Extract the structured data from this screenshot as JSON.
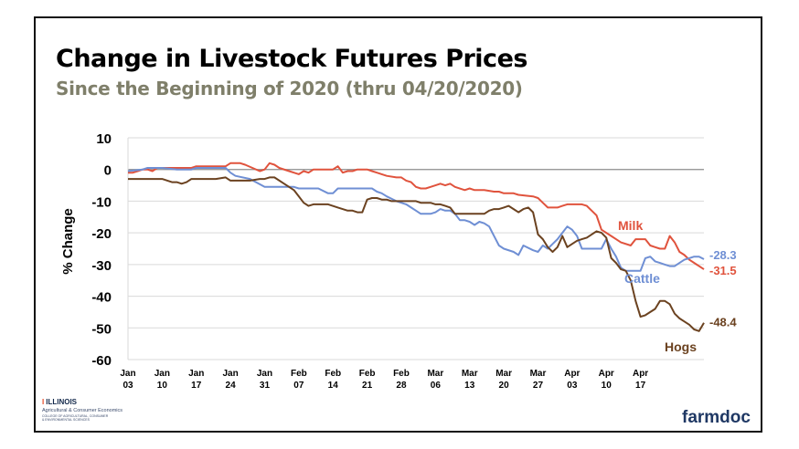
{
  "title": "Change in Livestock Futures Prices",
  "subtitle": "Since the Beginning of 2020 (thru 04/20/2020)",
  "logos": {
    "illinois": "ILLINOIS",
    "aces_line1": "Agricultural & Consumer Economics",
    "aces_line2": "COLLEGE OF AGRICULTURAL, CONSUMER",
    "aces_line3": "& ENVIRONMENTAL SCIENCES",
    "farmdoc": "farmdoc"
  },
  "chart_data": {
    "type": "line",
    "ylabel": "% Change",
    "ylim": [
      -60,
      10
    ],
    "yticks": [
      10,
      0,
      -10,
      -20,
      -30,
      -40,
      -50,
      -60
    ],
    "categories": [
      "Jan 03",
      "Jan 10",
      "Jan 17",
      "Jan 24",
      "Jan 31",
      "Feb 07",
      "Feb 14",
      "Feb 21",
      "Feb 28",
      "Mar 06",
      "Mar 13",
      "Mar 20",
      "Mar 27",
      "Apr 03",
      "Apr 10",
      "Apr 17"
    ],
    "category_months": [
      "Jan",
      "Jan",
      "Jan",
      "Jan",
      "Jan",
      "Feb",
      "Feb",
      "Feb",
      "Feb",
      "Mar",
      "Mar",
      "Mar",
      "Mar",
      "Apr",
      "Apr",
      "Apr"
    ],
    "category_days": [
      "03",
      "10",
      "17",
      "24",
      "31",
      "07",
      "14",
      "21",
      "28",
      "06",
      "13",
      "20",
      "27",
      "03",
      "10",
      "17"
    ],
    "x_unit": "days since Jan 03",
    "grid": true,
    "series": [
      {
        "name": "Milk",
        "color": "#e0533d",
        "end_label": "-31.5",
        "x": [
          0,
          1,
          2,
          3,
          4,
          5,
          6,
          7,
          10,
          13,
          14,
          17,
          20,
          21,
          22,
          23,
          24,
          27,
          28,
          29,
          30,
          31,
          33,
          34,
          35,
          36,
          37,
          38,
          39,
          40,
          42,
          43,
          44,
          45,
          46,
          47,
          49,
          50,
          51,
          52,
          53,
          55,
          56,
          57,
          58,
          59,
          60,
          61,
          62,
          63,
          64,
          65,
          66,
          67,
          69,
          70,
          71,
          73,
          75,
          76,
          77,
          78,
          79,
          80,
          83,
          84,
          85,
          86,
          88,
          89,
          90,
          91,
          92,
          93,
          94,
          95,
          96,
          97,
          98,
          99,
          100,
          101,
          103,
          104,
          105,
          106,
          107,
          108,
          109,
          110,
          111,
          112,
          113,
          114,
          115,
          118
        ],
        "y": [
          -1,
          -1,
          -0.5,
          0,
          0,
          -0.5,
          0.5,
          0.5,
          0.5,
          0.5,
          1,
          1,
          1,
          2,
          2,
          2,
          1.5,
          -0.5,
          0,
          2,
          1.5,
          0.5,
          -0.5,
          -1,
          -1.5,
          -0.5,
          -1,
          0,
          0,
          0,
          0,
          1,
          -1,
          -0.5,
          -0.5,
          0,
          0,
          -0.5,
          -1,
          -1.5,
          -2,
          -2.5,
          -2.5,
          -3.5,
          -4,
          -5.5,
          -6,
          -6,
          -5.5,
          -5,
          -4.5,
          -5,
          -4.5,
          -5.5,
          -6.5,
          -6,
          -6.5,
          -6.5,
          -7,
          -7,
          -7.5,
          -7.5,
          -7.5,
          -8,
          -8.5,
          -9,
          -10.5,
          -12,
          -12,
          -11.5,
          -11,
          -11,
          -11,
          -11,
          -11.5,
          -13,
          -14.5,
          -19,
          -20,
          -21,
          -22,
          -23,
          -24,
          -22,
          -22,
          -22,
          -24,
          -24.5,
          -25,
          -25,
          -21,
          -23,
          -26,
          -27,
          -28.5,
          -31.5
        ]
      },
      {
        "name": "Cattle",
        "color": "#6f8fd4",
        "end_label": "-28.3",
        "x": [
          0,
          3,
          4,
          5,
          7,
          10,
          13,
          14,
          15,
          16,
          17,
          20,
          21,
          22,
          25,
          28,
          29,
          30,
          31,
          34,
          35,
          36,
          37,
          38,
          39,
          41,
          42,
          43,
          46,
          48,
          49,
          50,
          51,
          52,
          53,
          55,
          56,
          57,
          58,
          59,
          60,
          62,
          63,
          64,
          65,
          66,
          67,
          68,
          69,
          70,
          71,
          72,
          73,
          74,
          75,
          76,
          77,
          79,
          80,
          81,
          83,
          84,
          85,
          86,
          87,
          88,
          90,
          91,
          92,
          93,
          94,
          95,
          96,
          97,
          98,
          99,
          100,
          101,
          102,
          103,
          104,
          105,
          106,
          107,
          108,
          109,
          110,
          111,
          112,
          113,
          114,
          115,
          116,
          117,
          118
        ],
        "y": [
          -0.5,
          0,
          0.5,
          0.5,
          0.5,
          0,
          0,
          0.5,
          0.5,
          0.5,
          0.5,
          0.5,
          -1,
          -2,
          -3,
          -5.5,
          -5.5,
          -5.5,
          -5.5,
          -5.5,
          -6,
          -6,
          -6,
          -6,
          -6,
          -7.5,
          -7.5,
          -6,
          -6,
          -6,
          -6,
          -6,
          -7,
          -7.5,
          -8.5,
          -10,
          -10.5,
          -11,
          -12,
          -13,
          -14,
          -14,
          -13.5,
          -12.5,
          -13,
          -13,
          -14,
          -16,
          -16,
          -16.5,
          -17.5,
          -16.5,
          -17,
          -18,
          -21,
          -24,
          -25,
          -26,
          -27,
          -24,
          -25.5,
          -26,
          -24,
          -25,
          -23.5,
          -22,
          -18,
          -19,
          -21,
          -25,
          -25,
          -25,
          -25,
          -25,
          -22,
          -25,
          -27.5,
          -31,
          -32,
          -32,
          -32,
          -32,
          -28,
          -27.5,
          -29,
          -29.5,
          -30,
          -30.5,
          -30.5,
          -29.5,
          -28.5,
          -28,
          -27.5,
          -27.5,
          -28.3
        ]
      },
      {
        "name": "Hogs",
        "color": "#6b4220",
        "end_label": "-48.4",
        "x": [
          0,
          2,
          4,
          5,
          6,
          7,
          9,
          10,
          11,
          12,
          13,
          14,
          16,
          17,
          18,
          20,
          21,
          23,
          25,
          27,
          28,
          29,
          30,
          32,
          33,
          34,
          35,
          36,
          37,
          38,
          39,
          41,
          43,
          45,
          46,
          47,
          48,
          49,
          50,
          51,
          52,
          53,
          54,
          55,
          56,
          57,
          58,
          59,
          60,
          62,
          63,
          64,
          65,
          66,
          67,
          68,
          69,
          70,
          71,
          72,
          73,
          74,
          75,
          76,
          77,
          78,
          79,
          80,
          81,
          82,
          83,
          84,
          85,
          86,
          87,
          88,
          89,
          90,
          91,
          92,
          93,
          94,
          95,
          96,
          97,
          98,
          99,
          100,
          101,
          102,
          103,
          104,
          105,
          106,
          107,
          108,
          109,
          110,
          111,
          112,
          113,
          114,
          115,
          116,
          117,
          118
        ],
        "y": [
          -3,
          -3,
          -3,
          -3,
          -3,
          -3,
          -4,
          -4,
          -4.5,
          -4,
          -3,
          -3,
          -3,
          -3,
          -3,
          -2.5,
          -3.5,
          -3.5,
          -3.5,
          -3,
          -3,
          -2.5,
          -2.5,
          -4.5,
          -5.5,
          -6.5,
          -8.5,
          -10.5,
          -11.5,
          -11,
          -11,
          -11,
          -12,
          -13,
          -13,
          -13.5,
          -13.5,
          -9.5,
          -9,
          -9,
          -9.5,
          -9.5,
          -10,
          -10,
          -10,
          -10,
          -10,
          -10,
          -10.5,
          -10.5,
          -11,
          -11,
          -11.5,
          -12,
          -14,
          -14,
          -14,
          -14,
          -14,
          -14,
          -14,
          -13,
          -12.5,
          -12.5,
          -12,
          -11.5,
          -12.5,
          -13.5,
          -12.5,
          -12,
          -13.5,
          -20.5,
          -22,
          -24.5,
          -26,
          -24.5,
          -21,
          -24.5,
          -23.5,
          -22.5,
          -22,
          -21.5,
          -20.5,
          -19.5,
          -20,
          -21.5,
          -28,
          -29.5,
          -31.5,
          -32,
          -35,
          -41.5,
          -46.5,
          -46,
          -45,
          -44,
          -41.5,
          -41.5,
          -42.5,
          -45.5,
          -47,
          -48,
          -49,
          -50.5,
          -51,
          -48.4
        ]
      }
    ],
    "annotations": [
      {
        "text": "Milk",
        "color": "#e0533d"
      },
      {
        "text": "Cattle",
        "color": "#6f8fd4"
      },
      {
        "text": "Hogs",
        "color": "#6b4220"
      }
    ]
  }
}
